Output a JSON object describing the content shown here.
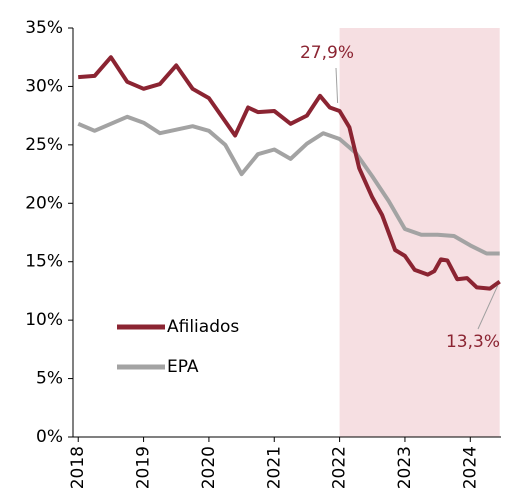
{
  "chart_data": {
    "type": "line",
    "xlim": [
      2017.92,
      2024.47
    ],
    "xticks": [
      2018,
      2019,
      2020,
      2021,
      2022,
      2023,
      2024
    ],
    "ylim": [
      0,
      35
    ],
    "yticks": [
      {
        "value": 0,
        "label": "0%"
      },
      {
        "value": 5,
        "label": "5%"
      },
      {
        "value": 10,
        "label": "10%"
      },
      {
        "value": 15,
        "label": "15%"
      },
      {
        "value": 20,
        "label": "20%"
      },
      {
        "value": 25,
        "label": "25%"
      },
      {
        "value": 30,
        "label": "30%"
      },
      {
        "value": 35,
        "label": "35%"
      }
    ],
    "grid": false,
    "legend": "lower left",
    "highlight_xrange": [
      2022,
      2024.45
    ],
    "highlight_color": "#f6dfe2",
    "series": [
      {
        "name": "Afiliados",
        "color": "#8b2432",
        "x": [
          2018.0,
          2018.25,
          2018.5,
          2018.75,
          2019.0,
          2019.25,
          2019.5,
          2019.75,
          2020.0,
          2020.25,
          2020.4,
          2020.6,
          2020.75,
          2021.0,
          2021.25,
          2021.5,
          2021.7,
          2021.85,
          2022.0,
          2022.15,
          2022.3,
          2022.5,
          2022.65,
          2022.85,
          2023.0,
          2023.15,
          2023.35,
          2023.45,
          2023.55,
          2023.65,
          2023.8,
          2023.95,
          2024.1,
          2024.3,
          2024.45
        ],
        "values": [
          30.8,
          30.9,
          32.5,
          30.4,
          29.8,
          30.2,
          31.8,
          29.8,
          29.0,
          27.0,
          25.8,
          28.2,
          27.8,
          27.9,
          26.8,
          27.5,
          29.2,
          28.2,
          27.9,
          26.5,
          23.0,
          20.5,
          19.0,
          16.0,
          15.5,
          14.3,
          13.9,
          14.2,
          15.2,
          15.1,
          13.5,
          13.6,
          12.8,
          12.7,
          13.3
        ]
      },
      {
        "name": "EPA",
        "color": "#a3a3a3",
        "x": [
          2018.0,
          2018.25,
          2018.5,
          2018.75,
          2019.0,
          2019.25,
          2019.5,
          2019.75,
          2020.0,
          2020.25,
          2020.5,
          2020.75,
          2021.0,
          2021.25,
          2021.5,
          2021.75,
          2022.0,
          2022.25,
          2022.5,
          2022.75,
          2023.0,
          2023.25,
          2023.5,
          2023.75,
          2024.0,
          2024.25,
          2024.45
        ],
        "values": [
          26.8,
          26.2,
          26.8,
          27.4,
          26.9,
          26.0,
          26.3,
          26.6,
          26.2,
          25.0,
          22.5,
          24.2,
          24.6,
          23.8,
          25.1,
          26.0,
          25.5,
          24.3,
          22.3,
          20.2,
          17.8,
          17.3,
          17.3,
          17.2,
          16.4,
          15.7,
          15.7
        ]
      }
    ],
    "annotations": [
      {
        "text": "27,9%",
        "x": 2022.0,
        "y": 27.9
      },
      {
        "text": "13,3%",
        "x": 2024.45,
        "y": 13.3
      }
    ]
  }
}
